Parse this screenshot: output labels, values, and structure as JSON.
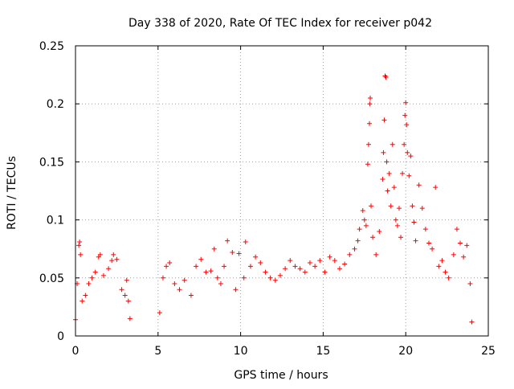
{
  "chart_data": {
    "type": "scatter",
    "title": "Day 338 of 2020, Rate Of TEC Index for receiver p042",
    "xlabel": "GPS time / hours",
    "ylabel": "ROTI / TECUs",
    "xlim": [
      0,
      25
    ],
    "ylim": [
      0,
      0.25
    ],
    "x_ticks": [
      0,
      5,
      10,
      15,
      20,
      25
    ],
    "y_ticks": [
      0,
      0.05,
      0.1,
      0.15,
      0.2,
      0.25
    ],
    "x_tick_labels": [
      "0",
      "5",
      "10",
      "15",
      "20",
      "25"
    ],
    "y_tick_labels": [
      "0",
      "0.05",
      "0.1",
      "0.15",
      "0.2",
      "0.25"
    ],
    "grid": true,
    "marker": "+",
    "color": "#ff0000",
    "series": [
      {
        "points": [
          [
            0.0,
            0.014
          ],
          [
            0.1,
            0.045
          ],
          [
            0.2,
            0.078
          ],
          [
            0.25,
            0.081
          ],
          [
            0.3,
            0.07
          ],
          [
            0.4,
            0.03
          ],
          [
            0.6,
            0.035
          ],
          [
            0.8,
            0.045
          ],
          [
            1.0,
            0.05
          ],
          [
            1.2,
            0.055
          ],
          [
            1.4,
            0.068
          ],
          [
            1.5,
            0.07
          ],
          [
            1.7,
            0.052
          ],
          [
            2.0,
            0.058
          ],
          [
            2.2,
            0.065
          ],
          [
            2.3,
            0.07
          ],
          [
            2.5,
            0.066
          ],
          [
            2.8,
            0.04
          ],
          [
            3.0,
            0.035
          ],
          [
            3.1,
            0.048
          ],
          [
            3.2,
            0.03
          ],
          [
            3.3,
            0.015
          ],
          [
            5.1,
            0.02
          ],
          [
            5.3,
            0.05
          ],
          [
            5.5,
            0.06
          ],
          [
            5.7,
            0.063
          ],
          [
            6.0,
            0.045
          ],
          [
            6.3,
            0.04
          ],
          [
            6.6,
            0.048
          ],
          [
            7.0,
            0.035
          ],
          [
            7.3,
            0.06
          ],
          [
            7.6,
            0.066
          ],
          [
            7.9,
            0.055
          ],
          [
            8.2,
            0.056
          ],
          [
            8.4,
            0.075
          ],
          [
            8.6,
            0.05
          ],
          [
            8.8,
            0.045
          ],
          [
            9.0,
            0.06
          ],
          [
            9.2,
            0.082
          ],
          [
            9.5,
            0.072
          ],
          [
            9.7,
            0.04
          ],
          [
            9.9,
            0.071
          ],
          [
            10.2,
            0.05
          ],
          [
            10.3,
            0.081
          ],
          [
            10.6,
            0.06
          ],
          [
            10.9,
            0.068
          ],
          [
            11.2,
            0.063
          ],
          [
            11.5,
            0.055
          ],
          [
            11.8,
            0.05
          ],
          [
            12.1,
            0.048
          ],
          [
            12.4,
            0.052
          ],
          [
            12.7,
            0.058
          ],
          [
            13.0,
            0.065
          ],
          [
            13.3,
            0.06
          ],
          [
            13.6,
            0.058
          ],
          [
            13.9,
            0.055
          ],
          [
            14.2,
            0.063
          ],
          [
            14.5,
            0.06
          ],
          [
            14.8,
            0.065
          ],
          [
            15.1,
            0.055
          ],
          [
            15.4,
            0.068
          ],
          [
            15.7,
            0.065
          ],
          [
            16.0,
            0.058
          ],
          [
            16.3,
            0.062
          ],
          [
            16.6,
            0.07
          ],
          [
            16.9,
            0.075
          ],
          [
            17.1,
            0.082
          ],
          [
            17.2,
            0.092
          ],
          [
            17.4,
            0.108
          ],
          [
            17.5,
            0.1
          ],
          [
            17.6,
            0.095
          ],
          [
            17.7,
            0.148
          ],
          [
            17.75,
            0.165
          ],
          [
            17.8,
            0.183
          ],
          [
            17.82,
            0.2
          ],
          [
            17.85,
            0.205
          ],
          [
            17.9,
            0.112
          ],
          [
            18.0,
            0.085
          ],
          [
            18.2,
            0.07
          ],
          [
            18.4,
            0.09
          ],
          [
            18.6,
            0.135
          ],
          [
            18.65,
            0.158
          ],
          [
            18.7,
            0.186
          ],
          [
            18.75,
            0.224
          ],
          [
            18.8,
            0.223
          ],
          [
            18.85,
            0.15
          ],
          [
            18.9,
            0.125
          ],
          [
            19.0,
            0.14
          ],
          [
            19.1,
            0.112
          ],
          [
            19.2,
            0.165
          ],
          [
            19.3,
            0.128
          ],
          [
            19.4,
            0.1
          ],
          [
            19.5,
            0.095
          ],
          [
            19.6,
            0.11
          ],
          [
            19.7,
            0.085
          ],
          [
            19.8,
            0.14
          ],
          [
            19.9,
            0.165
          ],
          [
            19.95,
            0.19
          ],
          [
            20.0,
            0.201
          ],
          [
            20.05,
            0.182
          ],
          [
            20.1,
            0.158
          ],
          [
            20.2,
            0.138
          ],
          [
            20.3,
            0.155
          ],
          [
            20.4,
            0.112
          ],
          [
            20.5,
            0.098
          ],
          [
            20.6,
            0.082
          ],
          [
            20.8,
            0.13
          ],
          [
            21.0,
            0.11
          ],
          [
            21.2,
            0.092
          ],
          [
            21.4,
            0.08
          ],
          [
            21.6,
            0.075
          ],
          [
            21.8,
            0.128
          ],
          [
            22.0,
            0.06
          ],
          [
            22.2,
            0.065
          ],
          [
            22.4,
            0.055
          ],
          [
            22.6,
            0.05
          ],
          [
            22.9,
            0.07
          ],
          [
            23.1,
            0.092
          ],
          [
            23.3,
            0.08
          ],
          [
            23.5,
            0.068
          ],
          [
            23.7,
            0.078
          ],
          [
            23.9,
            0.045
          ],
          [
            24.0,
            0.012
          ]
        ]
      }
    ]
  }
}
